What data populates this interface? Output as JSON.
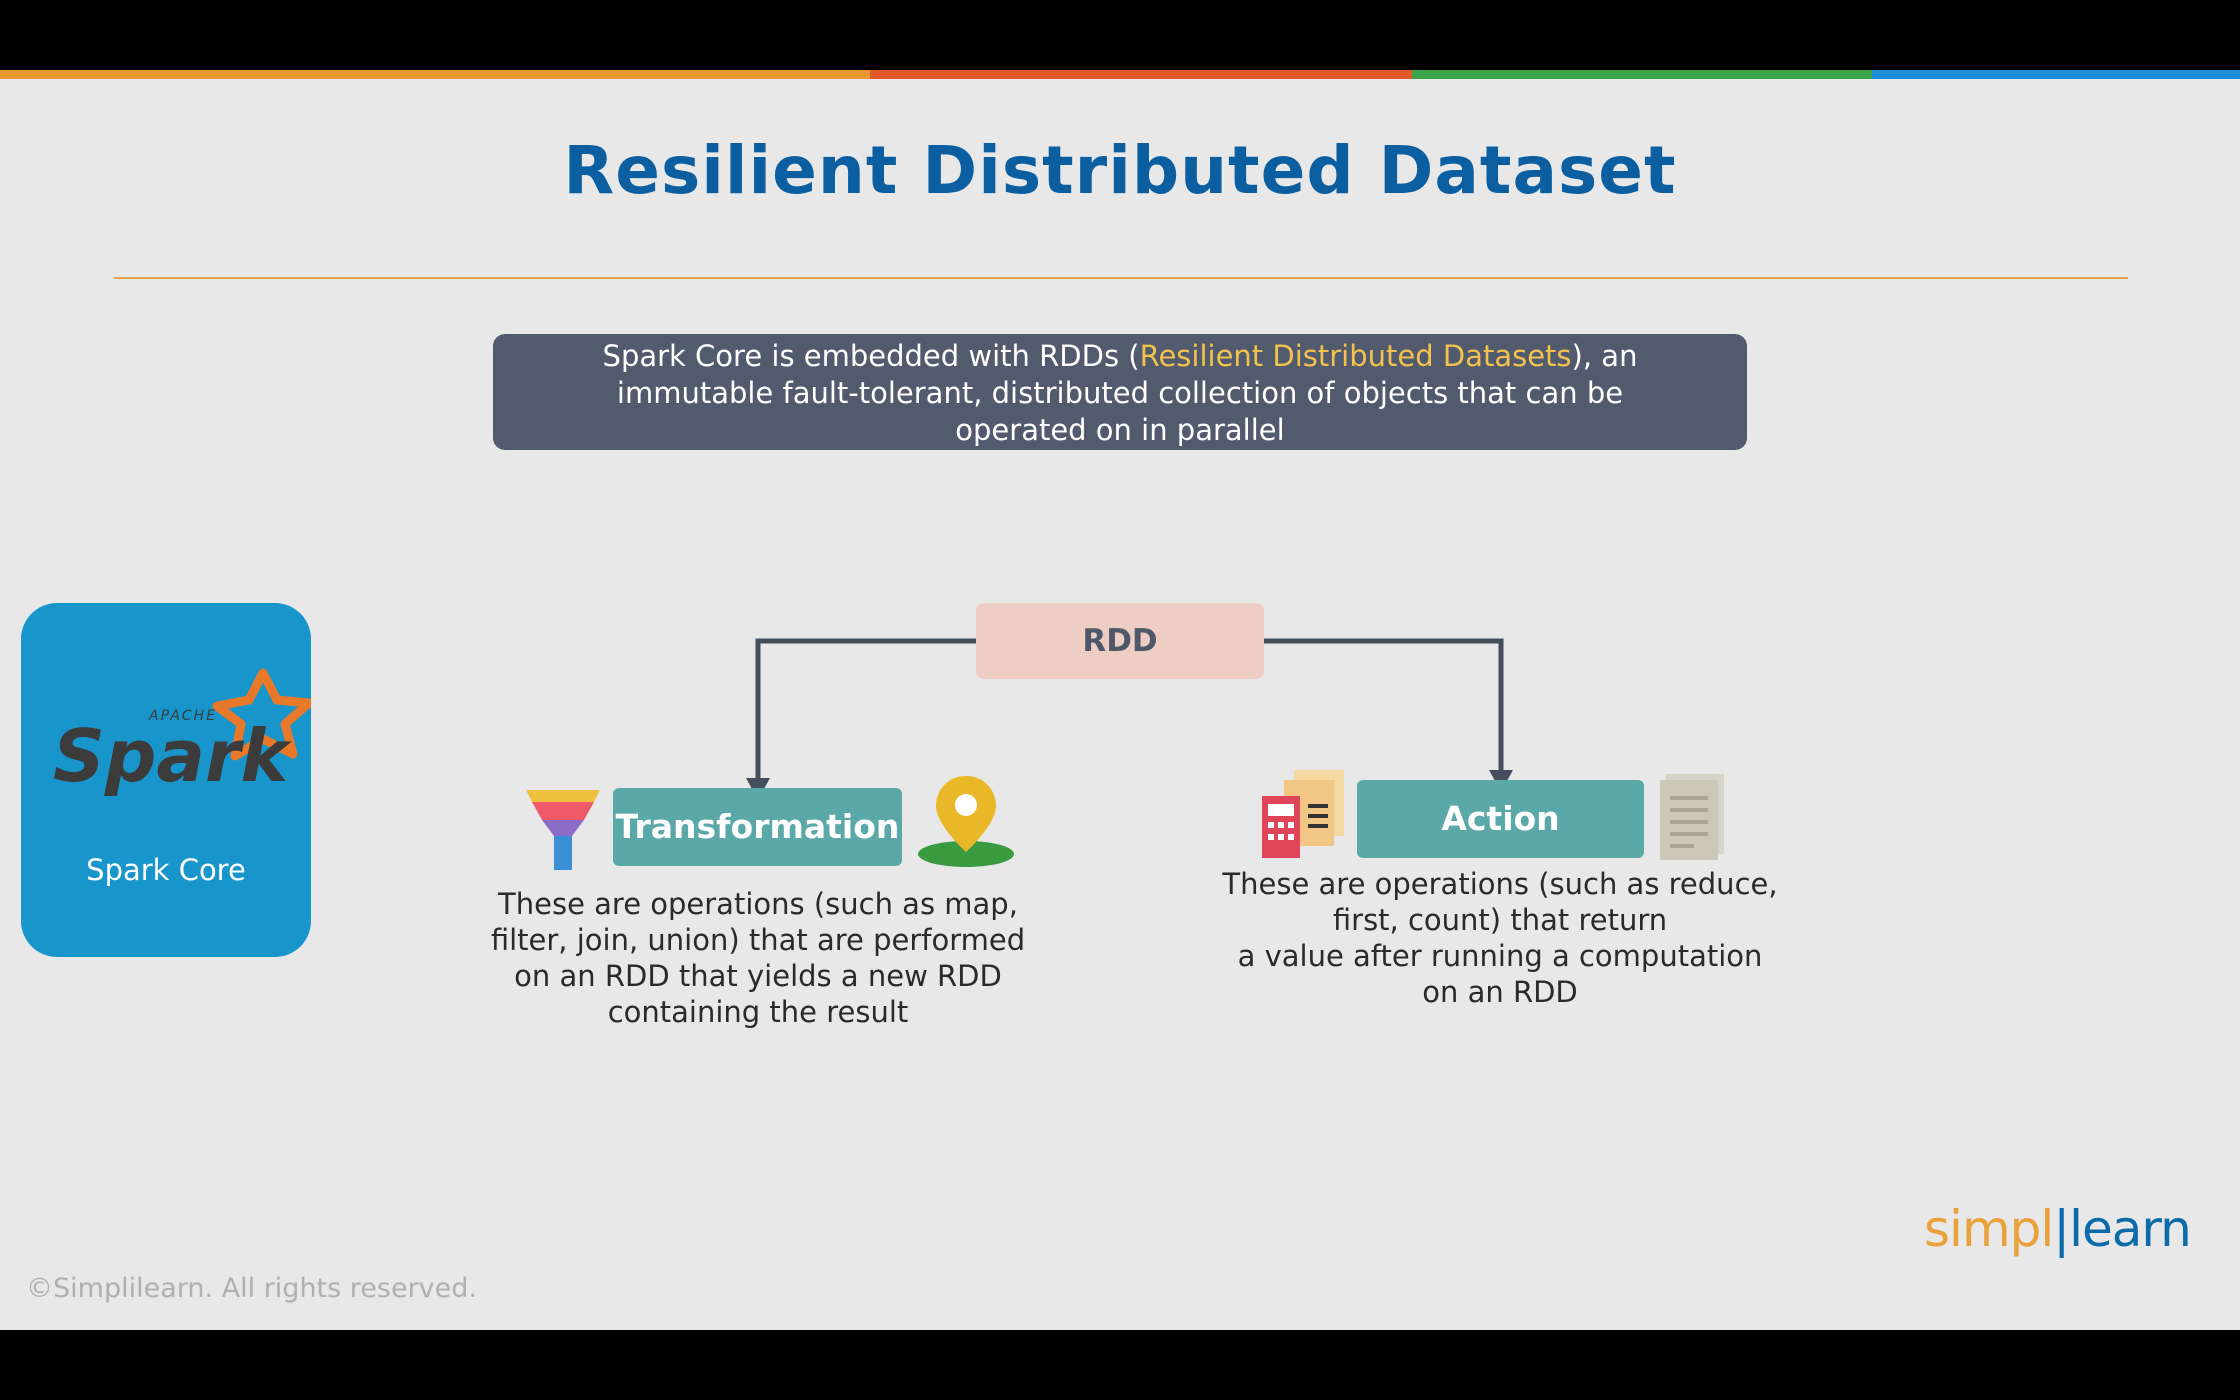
{
  "title": "Resilient Distributed Dataset",
  "description": {
    "part1": "Spark Core is embedded with RDDs (",
    "highlight": "Resilient Distributed Datasets",
    "part2": "), an immutable fault-tolerant, distributed collection of objects that can be operated on in parallel"
  },
  "spark_card": {
    "logo_small": "APACHE",
    "logo_text": "Spark",
    "label": "Spark Core"
  },
  "diagram": {
    "root": "RDD",
    "transformation": {
      "label": "Transformation",
      "description": [
        "These are operations (such as map,",
        "filter, join, union) that are performed",
        "on an RDD that yields a new RDD",
        "containing the result"
      ]
    },
    "action": {
      "label": "Action",
      "description": [
        "These are operations (such as reduce,",
        "first, count) that return",
        "a value after running a computation",
        "on an RDD"
      ]
    }
  },
  "footer": {
    "copyright": "©Simplilearn. All rights reserved.",
    "brand_part1": "simpl",
    "brand_part2": "learn"
  },
  "colors": {
    "title": "#0b5fa1",
    "desc_box": "#515b6d",
    "highlight": "#f2c14e",
    "spark_card": "#1896cc",
    "rdd_box": "#eecdc4",
    "op_box": "#5ba8a8",
    "stripe_orange": "#e9962f",
    "stripe_red": "#e25a2b",
    "stripe_green": "#3aa34b",
    "stripe_blue": "#1e8fd6"
  }
}
